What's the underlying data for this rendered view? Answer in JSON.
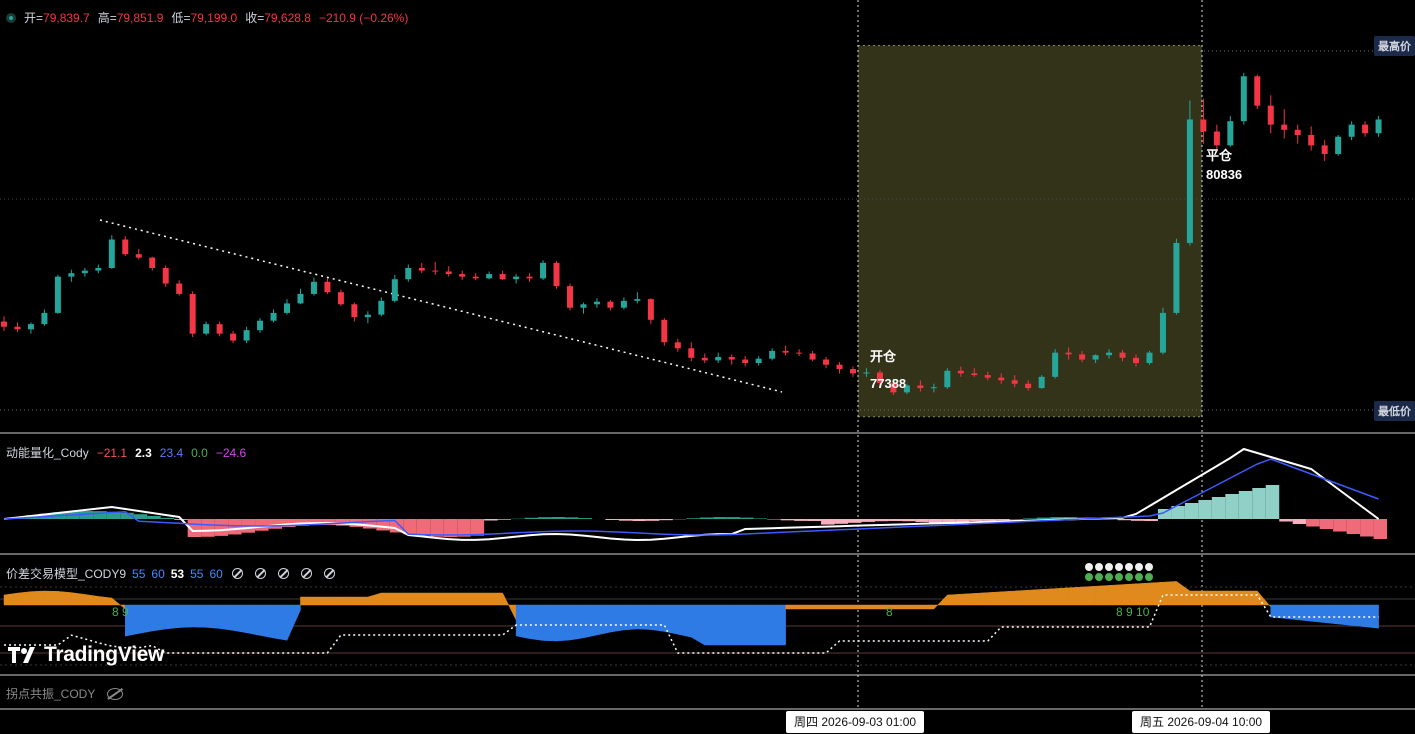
{
  "ohlc": {
    "open_label": "开=",
    "open": "79,839.7",
    "high_label": "高=",
    "high": "79,851.9",
    "low_label": "低=",
    "low": "79,199.0",
    "close_label": "收=",
    "close": "79,628.8",
    "change": "−210.9 (−0.26%)"
  },
  "price_tags": {
    "highest": "最高价",
    "lowest": "最低价"
  },
  "trade": {
    "open_label": "开仓",
    "open_price": "77388",
    "close_label": "平仓",
    "close_price": "80836"
  },
  "indicator1": {
    "name": "动能量化_Cody",
    "values": [
      "−21.1",
      "2.3",
      "23.4",
      "0.0",
      "−24.6"
    ],
    "colors": [
      "#f7525f",
      "#ffffff",
      "#3d5afe",
      "#4caf50",
      "#e040fb"
    ]
  },
  "indicator2": {
    "name": "价差交易模型_CODY9",
    "params": [
      "55",
      "60",
      "53",
      "55",
      "60"
    ],
    "param_colors": [
      "#448aff",
      "#448aff",
      "#ffffff",
      "#448aff",
      "#448aff"
    ],
    "signals": [
      "8 9",
      "8",
      "8 9 10"
    ],
    "icons": [
      "circle-slash-icon",
      "circle-slash-icon",
      "circle-slash-icon",
      "circle-slash-icon",
      "circle-slash-icon"
    ]
  },
  "indicator3": {
    "name": "拐点共振_CODY"
  },
  "branding": {
    "logo_text": "TradingView"
  },
  "crosshair": {
    "time1": "周四 2026-09-03   01:00",
    "time2": "周五 2026-09-04   10:00"
  },
  "colors": {
    "up": "#26a69a",
    "down": "#f23645",
    "trade_zone": "#33331a",
    "ind_white": "#ffffff",
    "ind_blue": "#3d5afe",
    "area_orange": "#e08a1e",
    "area_blue": "#2f7be6"
  },
  "chart_data": {
    "type": "candlestick",
    "note_ohlc": "O,H,L,C per bar (price units)",
    "candles": [
      [
        78240,
        78300,
        78130,
        78180
      ],
      [
        78180,
        78230,
        78120,
        78150
      ],
      [
        78150,
        78230,
        78100,
        78210
      ],
      [
        78210,
        78380,
        78190,
        78340
      ],
      [
        78340,
        78780,
        78330,
        78760
      ],
      [
        78760,
        78840,
        78700,
        78800
      ],
      [
        78800,
        78860,
        78760,
        78830
      ],
      [
        78830,
        78900,
        78800,
        78860
      ],
      [
        78860,
        79240,
        78850,
        79190
      ],
      [
        79190,
        79230,
        79000,
        79020
      ],
      [
        79020,
        79080,
        78960,
        78980
      ],
      [
        78980,
        78990,
        78830,
        78860
      ],
      [
        78860,
        78890,
        78640,
        78680
      ],
      [
        78680,
        78720,
        78540,
        78560
      ],
      [
        78560,
        78590,
        78060,
        78100
      ],
      [
        78100,
        78240,
        78080,
        78210
      ],
      [
        78210,
        78240,
        78070,
        78100
      ],
      [
        78100,
        78130,
        77990,
        78020
      ],
      [
        78020,
        78180,
        77990,
        78140
      ],
      [
        78140,
        78280,
        78110,
        78250
      ],
      [
        78250,
        78380,
        78230,
        78340
      ],
      [
        78340,
        78500,
        78320,
        78450
      ],
      [
        78450,
        78620,
        78440,
        78560
      ],
      [
        78560,
        78750,
        78540,
        78700
      ],
      [
        78700,
        78740,
        78560,
        78580
      ],
      [
        78580,
        78610,
        78420,
        78440
      ],
      [
        78440,
        78460,
        78240,
        78290
      ],
      [
        78290,
        78360,
        78220,
        78320
      ],
      [
        78320,
        78520,
        78300,
        78480
      ],
      [
        78480,
        78780,
        78460,
        78730
      ],
      [
        78730,
        78900,
        78700,
        78860
      ],
      [
        78860,
        78920,
        78800,
        78830
      ],
      [
        78830,
        78930,
        78780,
        78820
      ],
      [
        78820,
        78880,
        78760,
        78790
      ],
      [
        78790,
        78830,
        78720,
        78760
      ],
      [
        78760,
        78800,
        78720,
        78740
      ],
      [
        78740,
        78820,
        78730,
        78790
      ],
      [
        78790,
        78830,
        78720,
        78730
      ],
      [
        78730,
        78790,
        78680,
        78760
      ],
      [
        78760,
        78800,
        78700,
        78740
      ],
      [
        78740,
        78950,
        78720,
        78920
      ],
      [
        78920,
        78940,
        78620,
        78650
      ],
      [
        78650,
        78680,
        78370,
        78400
      ],
      [
        78400,
        78460,
        78330,
        78440
      ],
      [
        78440,
        78510,
        78400,
        78470
      ],
      [
        78470,
        78490,
        78370,
        78400
      ],
      [
        78400,
        78520,
        78380,
        78480
      ],
      [
        78480,
        78580,
        78450,
        78500
      ],
      [
        78500,
        78510,
        78210,
        78260
      ],
      [
        78260,
        78280,
        77960,
        78000
      ],
      [
        78000,
        78040,
        77890,
        77930
      ],
      [
        77930,
        78000,
        77780,
        77820
      ],
      [
        77820,
        77870,
        77760,
        77790
      ],
      [
        77790,
        77880,
        77760,
        77830
      ],
      [
        77830,
        77860,
        77740,
        77800
      ],
      [
        77800,
        77840,
        77720,
        77760
      ],
      [
        77760,
        77840,
        77730,
        77810
      ],
      [
        77810,
        77930,
        77790,
        77900
      ],
      [
        77900,
        77960,
        77850,
        77880
      ],
      [
        77880,
        77920,
        77840,
        77870
      ],
      [
        77870,
        77900,
        77780,
        77800
      ],
      [
        77800,
        77830,
        77700,
        77740
      ],
      [
        77740,
        77770,
        77640,
        77690
      ],
      [
        77690,
        77720,
        77600,
        77640
      ],
      [
        77640,
        77700,
        77600,
        77650
      ],
      [
        77650,
        77680,
        77500,
        77530
      ],
      [
        77530,
        77580,
        77390,
        77420
      ],
      [
        77420,
        77520,
        77400,
        77500
      ],
      [
        77500,
        77560,
        77430,
        77470
      ],
      [
        77470,
        77520,
        77420,
        77480
      ],
      [
        77480,
        77700,
        77460,
        77670
      ],
      [
        77670,
        77720,
        77600,
        77640
      ],
      [
        77640,
        77700,
        77600,
        77620
      ],
      [
        77620,
        77660,
        77560,
        77590
      ],
      [
        77590,
        77640,
        77520,
        77560
      ],
      [
        77560,
        77620,
        77480,
        77520
      ],
      [
        77520,
        77560,
        77440,
        77470
      ],
      [
        77470,
        77620,
        77460,
        77600
      ],
      [
        77600,
        77920,
        77580,
        77880
      ],
      [
        77880,
        77940,
        77800,
        77860
      ],
      [
        77860,
        77900,
        77770,
        77800
      ],
      [
        77800,
        77860,
        77760,
        77850
      ],
      [
        77850,
        77920,
        77810,
        77880
      ],
      [
        77880,
        77910,
        77780,
        77820
      ],
      [
        77820,
        77860,
        77720,
        77760
      ],
      [
        77760,
        77900,
        77740,
        77880
      ],
      [
        77880,
        78400,
        77860,
        78340
      ],
      [
        78340,
        79200,
        78320,
        79150
      ],
      [
        79150,
        80800,
        79120,
        80580
      ],
      [
        80580,
        80820,
        80300,
        80440
      ],
      [
        80440,
        80520,
        80200,
        80280
      ],
      [
        80280,
        80620,
        80260,
        80560
      ],
      [
        80560,
        81120,
        80520,
        81080
      ],
      [
        81080,
        81100,
        80700,
        80740
      ],
      [
        80740,
        80860,
        80420,
        80520
      ],
      [
        80520,
        80700,
        80360,
        80460
      ],
      [
        80460,
        80520,
        80300,
        80400
      ],
      [
        80400,
        80500,
        80220,
        80280
      ],
      [
        80280,
        80340,
        80100,
        80180
      ],
      [
        80180,
        80400,
        80160,
        80380
      ],
      [
        80380,
        80560,
        80340,
        80520
      ],
      [
        80520,
        80560,
        80380,
        80420
      ],
      [
        80420,
        80620,
        80380,
        80580
      ]
    ],
    "trade_zone": {
      "entry": 77388,
      "exit": 80836
    },
    "dotted_trendline": "descending resistance"
  }
}
